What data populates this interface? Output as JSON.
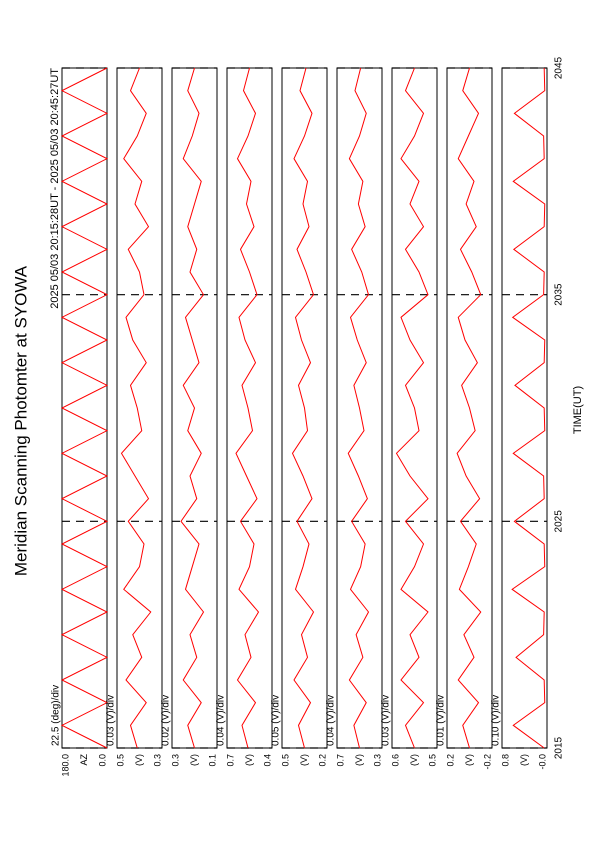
{
  "chart_data": {
    "type": "line",
    "title": "Meridian Scanning Photomter at SYOWA",
    "subtitle": "2025 05/03 20:15:28UT - 2025 05/03 20:45:27UT",
    "xlabel": "TIME(UT)",
    "xlim": [
      2015,
      2045
    ],
    "xticks": [
      2015,
      2025,
      2035,
      2045
    ],
    "grid": true,
    "x": [
      2015,
      2016,
      2017,
      2018,
      2019,
      2020,
      2021,
      2022,
      2023,
      2024,
      2025,
      2026,
      2027,
      2028,
      2029,
      2030,
      2031,
      2032,
      2033,
      2034,
      2035,
      2036,
      2037,
      2038,
      2039,
      2040,
      2041,
      2042,
      2043,
      2044,
      2045
    ],
    "panels": [
      {
        "scale_label": "22.5 (deg)/div",
        "ylabel": "AZ",
        "ylim": [
          0,
          180
        ],
        "yticks": [
          {
            "value": 0,
            "label": "0.0"
          },
          {
            "value": 180,
            "label": "180.0"
          }
        ],
        "series": [
          {
            "color": "#ff0000",
            "values": [
              0,
              180,
              0,
              180,
              0,
              180,
              0,
              180,
              0,
              180,
              0,
              180,
              0,
              180,
              0,
              180,
              0,
              180,
              0,
              180,
              0,
              180,
              0,
              180,
              0,
              180,
              0,
              180,
              0,
              180,
              0
            ]
          }
        ]
      },
      {
        "scale_label": "0.03 (V)/div",
        "ylabel": "(V)",
        "ylim": [
          0.3,
          0.5
        ],
        "yticks": [
          0.3,
          0.5
        ],
        "series": [
          {
            "color": "#ff0000",
            "values": [
              0.41,
              0.44,
              0.37,
              0.46,
              0.39,
              0.43,
              0.35,
              0.47,
              0.4,
              0.38,
              0.45,
              0.36,
              0.42,
              0.48,
              0.39,
              0.41,
              0.44,
              0.37,
              0.43,
              0.46,
              0.38,
              0.4,
              0.45,
              0.36,
              0.42,
              0.39,
              0.47,
              0.41,
              0.37,
              0.44,
              0.4
            ]
          }
        ]
      },
      {
        "scale_label": "0.02 (V)/div",
        "ylabel": "(V)",
        "ylim": [
          0.1,
          0.3
        ],
        "yticks": [
          0.1,
          0.3
        ],
        "series": [
          {
            "color": "#ff0000",
            "values": [
              0.2,
              0.23,
              0.17,
              0.25,
              0.19,
              0.22,
              0.16,
              0.24,
              0.21,
              0.18,
              0.26,
              0.19,
              0.22,
              0.17,
              0.23,
              0.2,
              0.25,
              0.18,
              0.21,
              0.24,
              0.16,
              0.22,
              0.19,
              0.23,
              0.2,
              0.17,
              0.25,
              0.21,
              0.18,
              0.23,
              0.2
            ]
          }
        ]
      },
      {
        "scale_label": "0.04 (V)/div",
        "ylabel": "(V)",
        "ylim": [
          0.4,
          0.7
        ],
        "yticks": [
          0.4,
          0.7
        ],
        "series": [
          {
            "color": "#ff0000",
            "values": [
              0.56,
              0.6,
              0.51,
              0.63,
              0.54,
              0.58,
              0.49,
              0.62,
              0.55,
              0.52,
              0.61,
              0.5,
              0.57,
              0.64,
              0.53,
              0.56,
              0.6,
              0.51,
              0.58,
              0.62,
              0.5,
              0.55,
              0.61,
              0.52,
              0.57,
              0.54,
              0.63,
              0.56,
              0.51,
              0.59,
              0.55
            ]
          }
        ]
      },
      {
        "scale_label": "0.05 (V)/div",
        "ylabel": "(V)",
        "ylim": [
          0.2,
          0.5
        ],
        "yticks": [
          0.2,
          0.5
        ],
        "series": [
          {
            "color": "#ff0000",
            "values": [
              0.35,
              0.39,
              0.31,
              0.42,
              0.33,
              0.37,
              0.29,
              0.41,
              0.36,
              0.32,
              0.4,
              0.3,
              0.36,
              0.43,
              0.33,
              0.35,
              0.39,
              0.31,
              0.37,
              0.41,
              0.29,
              0.34,
              0.4,
              0.32,
              0.36,
              0.33,
              0.42,
              0.35,
              0.3,
              0.38,
              0.34
            ]
          }
        ]
      },
      {
        "scale_label": "0.04 (V)/div",
        "ylabel": "(V)",
        "ylim": [
          0.3,
          0.7
        ],
        "yticks": [
          0.3,
          0.7
        ],
        "series": [
          {
            "color": "#ff0000",
            "values": [
              0.5,
              0.55,
              0.44,
              0.59,
              0.47,
              0.53,
              0.42,
              0.58,
              0.49,
              0.45,
              0.57,
              0.43,
              0.51,
              0.6,
              0.46,
              0.5,
              0.55,
              0.44,
              0.52,
              0.58,
              0.42,
              0.48,
              0.57,
              0.45,
              0.51,
              0.47,
              0.59,
              0.5,
              0.44,
              0.54,
              0.49
            ]
          }
        ]
      },
      {
        "scale_label": "0.03 (V)/div",
        "ylabel": "(V)",
        "ylim": [
          0.5,
          0.6
        ],
        "yticks": [
          0.5,
          0.6
        ],
        "series": [
          {
            "color": "#ff0000",
            "values": [
              0.55,
              0.57,
              0.53,
              0.58,
              0.54,
              0.56,
              0.52,
              0.58,
              0.55,
              0.53,
              0.57,
              0.52,
              0.56,
              0.59,
              0.54,
              0.55,
              0.57,
              0.53,
              0.56,
              0.58,
              0.52,
              0.54,
              0.57,
              0.53,
              0.56,
              0.54,
              0.58,
              0.55,
              0.53,
              0.57,
              0.55
            ]
          }
        ]
      },
      {
        "scale_label": "0.01 (V)/div",
        "ylabel": "(V)",
        "ylim": [
          -0.2,
          0.2
        ],
        "yticks": [
          -0.2,
          0.2
        ],
        "series": [
          {
            "color": "#ff0000",
            "values": [
              0.0,
              0.06,
              -0.08,
              0.1,
              -0.04,
              0.05,
              -0.1,
              0.09,
              0.01,
              -0.06,
              0.08,
              -0.09,
              0.03,
              0.11,
              -0.05,
              0.0,
              0.07,
              -0.07,
              0.04,
              0.1,
              -0.1,
              -0.02,
              0.08,
              -0.06,
              0.03,
              -0.04,
              0.1,
              0.01,
              -0.08,
              0.06,
              0.0
            ]
          }
        ]
      },
      {
        "scale_label": "0.10 (V)/div",
        "ylabel": "(V)",
        "ylim": [
          0,
          0.8
        ],
        "yticks": [
          {
            "value": 0,
            "label": "-0.0"
          },
          0.8
        ],
        "series": [
          {
            "color": "#ff0000",
            "values": [
              0.05,
              0.6,
              0.04,
              0.05,
              0.55,
              0.06,
              0.05,
              0.62,
              0.04,
              0.05,
              0.58,
              0.05,
              0.06,
              0.6,
              0.04,
              0.05,
              0.57,
              0.05,
              0.04,
              0.61,
              0.06,
              0.05,
              0.59,
              0.05,
              0.04,
              0.6,
              0.05,
              0.06,
              0.58,
              0.04,
              0.05
            ]
          }
        ]
      }
    ]
  }
}
